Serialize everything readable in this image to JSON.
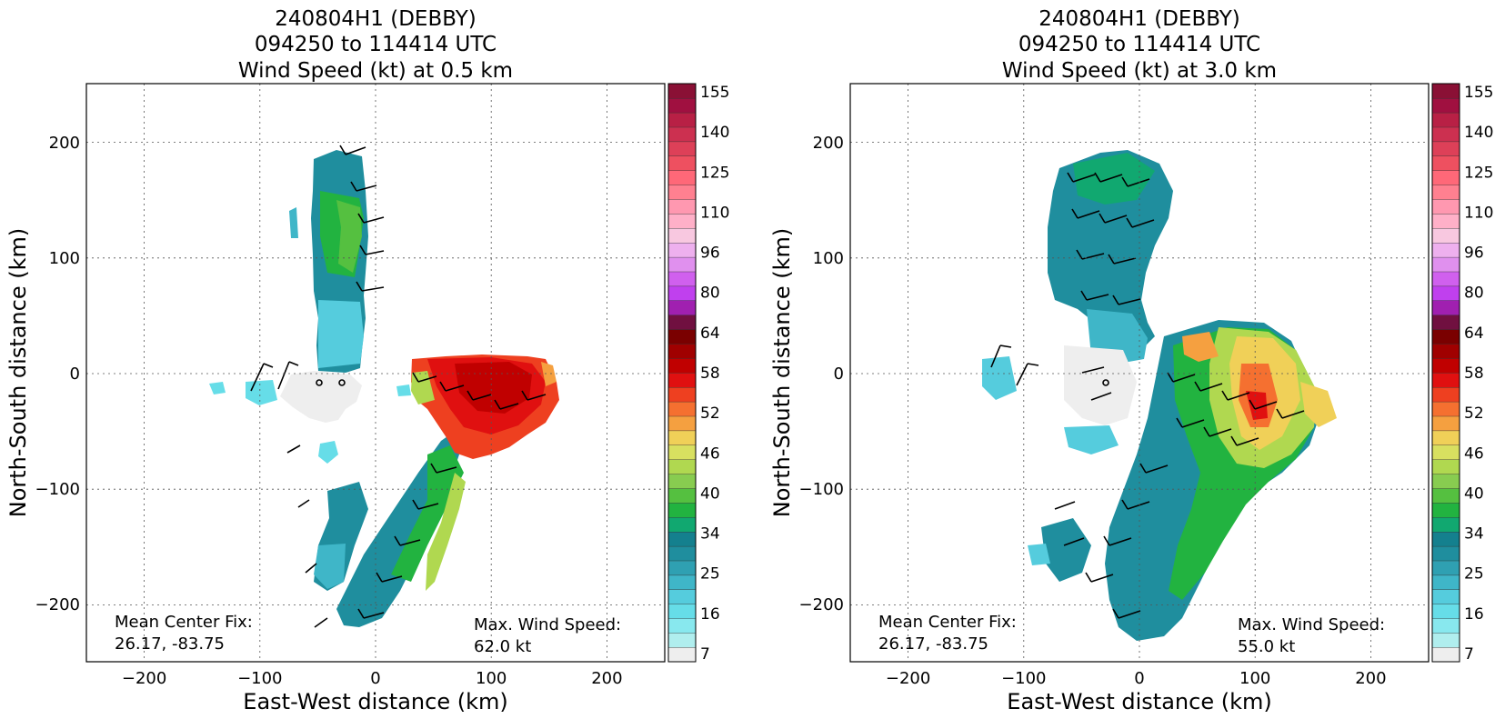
{
  "panels": [
    {
      "title_lines": [
        "240804H1 (DEBBY)",
        "094250 to 114414 UTC",
        "Wind Speed (kt) at 0.5 km"
      ],
      "center_fix_label": "Mean Center Fix:",
      "center_fix_value": "26.17, -83.75",
      "max_wind_label": "Max. Wind Speed:",
      "max_wind_value": "62.0 kt"
    },
    {
      "title_lines": [
        "240804H1 (DEBBY)",
        "094250 to 114414 UTC",
        "Wind Speed (kt) at 3.0 km"
      ],
      "center_fix_label": "Mean Center Fix:",
      "center_fix_value": "26.17, -83.75",
      "max_wind_label": "Max. Wind Speed:",
      "max_wind_value": "55.0 kt"
    }
  ],
  "chart_data": [
    {
      "type": "heatmap",
      "title": "240804H1 (DEBBY) 094250 to 114414 UTC Wind Speed (kt) at 0.5 km",
      "xlabel": "East-West distance (km)",
      "ylabel": "North-South distance (km)",
      "xlim": [
        -250,
        250
      ],
      "ylim": [
        -250,
        250
      ],
      "xticks": [
        -200,
        -100,
        0,
        100,
        200
      ],
      "yticks": [
        -200,
        -100,
        0,
        100,
        200
      ],
      "grid": true,
      "colorbar_ticks": [
        7,
        16,
        25,
        34,
        40,
        46,
        52,
        58,
        64,
        80,
        96,
        110,
        125,
        140,
        155
      ],
      "max_wind_kt": 62.0,
      "center_fix": [
        26.17,
        -83.75
      ]
    },
    {
      "type": "heatmap",
      "title": "240804H1 (DEBBY) 094250 to 114414 UTC Wind Speed (kt) at 3.0 km",
      "xlabel": "East-West distance (km)",
      "ylabel": "North-South distance (km)",
      "xlim": [
        -250,
        250
      ],
      "ylim": [
        -250,
        250
      ],
      "xticks": [
        -200,
        -100,
        0,
        100,
        200
      ],
      "yticks": [
        -200,
        -100,
        0,
        100,
        200
      ],
      "grid": true,
      "colorbar_ticks": [
        7,
        16,
        25,
        34,
        40,
        46,
        52,
        58,
        64,
        80,
        96,
        110,
        125,
        140,
        155
      ],
      "max_wind_kt": 55.0,
      "center_fix": [
        26.17,
        -83.75
      ]
    }
  ],
  "colorbar": {
    "colors": [
      "#eeeeee",
      "#b0eeee",
      "#88e8ee",
      "#66dde8",
      "#55ccdd",
      "#3fb6c8",
      "#2fa0b2",
      "#1f8e9e",
      "#14808e",
      "#11a870",
      "#22b340",
      "#55c040",
      "#88cc50",
      "#b0d850",
      "#d8e060",
      "#f0d058",
      "#f5a040",
      "#f57030",
      "#ee4020",
      "#e01010",
      "#c00000",
      "#a00000",
      "#7a0000",
      "#701040",
      "#a020b0",
      "#c040ee",
      "#d060ee",
      "#e090ee",
      "#eeb0ee",
      "#f8c8e0",
      "#ffb0c8",
      "#ff98b0",
      "#ff8090",
      "#ff6878",
      "#ee5060",
      "#dd4058",
      "#cc3050",
      "#b82045",
      "#a01040",
      "#8a1035"
    ]
  }
}
